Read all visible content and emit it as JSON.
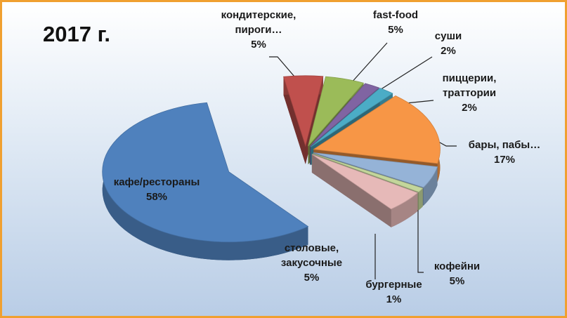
{
  "chart_data": {
    "type": "pie",
    "title": "2017 г.",
    "categories": [
      "кондитерские, пироги…",
      "fast-food",
      "суши",
      "пиццерии, траттории",
      "бары, пабы…",
      "кофейни",
      "бургерные",
      "столовые, закусочные",
      "кафе/рестораны"
    ],
    "values": [
      5,
      5,
      2,
      2,
      17,
      5,
      1,
      5,
      58
    ],
    "value_labels": [
      "5%",
      "5%",
      "2%",
      "2%",
      "17%",
      "5%",
      "1%",
      "5%",
      "58%"
    ],
    "colors": [
      "#c0504d",
      "#9bbb59",
      "#8064a2",
      "#4bacc6",
      "#f79646",
      "#95b3d7",
      "#c3d69b",
      "#e6b9b8",
      "#4f81bd"
    ]
  }
}
